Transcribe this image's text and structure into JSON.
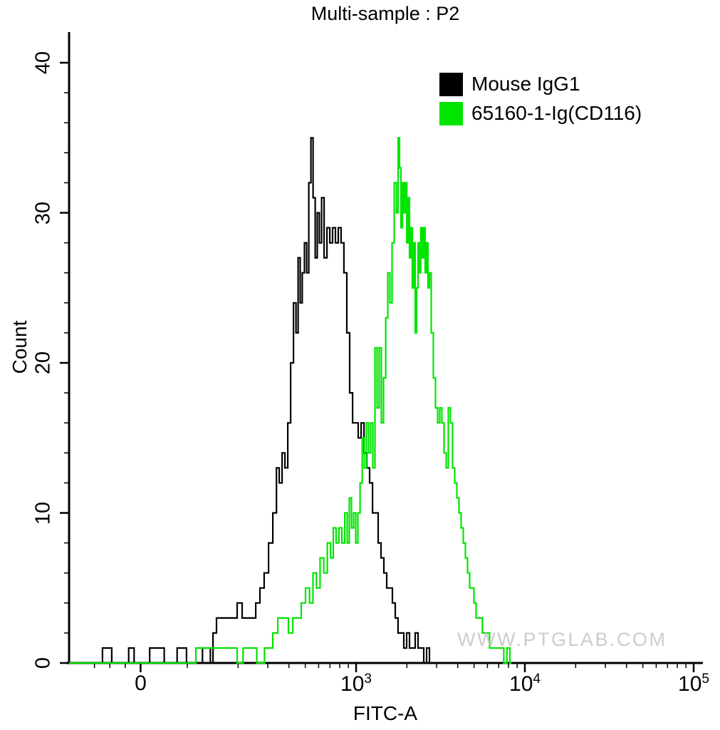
{
  "watermark": "WWW.PTGLAB.COM",
  "chart_data": {
    "type": "line",
    "subtype": "flow-cytometry-histogram",
    "title": "Multi-sample : P2",
    "xlabel": "FITC-A",
    "ylabel": "Count",
    "ylim": [
      0,
      40
    ],
    "xlim": [
      -465,
      100000
    ],
    "x_scale": "biexponential (linear below ~60, log10 decades above; labeled decades 10^3 to 10^5)",
    "grid": false,
    "legend_position": "top-right inside plot",
    "x_ticks": [
      {
        "text": "0",
        "v": 0
      },
      {
        "text": "10",
        "sup": "3",
        "v": 1000
      },
      {
        "text": "10",
        "sup": "4",
        "v": 10000
      },
      {
        "text": "10",
        "sup": "5",
        "v": 100000
      }
    ],
    "x_minor_ticks": [
      -300,
      -200,
      -100,
      100,
      200,
      300,
      400,
      500,
      600,
      700,
      800,
      900,
      2000,
      3000,
      4000,
      5000,
      6000,
      7000,
      8000,
      9000,
      20000,
      30000,
      40000,
      50000,
      60000,
      70000,
      80000,
      90000
    ],
    "y_ticks": [
      0,
      10,
      20,
      30,
      40
    ],
    "y_minor_step": 2,
    "series": [
      {
        "name": "Mouse IgG1",
        "color": "#000000",
        "peak": {
          "x": 548,
          "count": 35
        },
        "points": [
          [
            -465,
            0
          ],
          [
            -250,
            0
          ],
          [
            -245,
            1
          ],
          [
            -190,
            1
          ],
          [
            -185,
            0
          ],
          [
            -80,
            0
          ],
          [
            -75,
            1
          ],
          [
            -45,
            1
          ],
          [
            -40,
            0
          ],
          [
            58,
            0
          ],
          [
            60,
            1
          ],
          [
            72,
            1
          ],
          [
            74,
            0
          ],
          [
            86,
            0
          ],
          [
            88,
            1
          ],
          [
            98,
            1
          ],
          [
            100,
            0
          ],
          [
            122,
            0
          ],
          [
            124,
            1
          ],
          [
            136,
            1
          ],
          [
            138,
            0
          ],
          [
            141,
            0
          ],
          [
            143,
            2
          ],
          [
            155,
            3
          ],
          [
            192,
            3
          ],
          [
            203,
            4
          ],
          [
            220,
            3
          ],
          [
            247,
            3
          ],
          [
            262,
            4
          ],
          [
            277,
            5
          ],
          [
            294,
            6
          ],
          [
            312,
            8
          ],
          [
            331,
            10
          ],
          [
            344,
            13
          ],
          [
            357,
            12
          ],
          [
            372,
            14
          ],
          [
            386,
            13
          ],
          [
            402,
            16
          ],
          [
            417,
            20
          ],
          [
            434,
            24
          ],
          [
            447,
            22
          ],
          [
            460,
            27
          ],
          [
            473,
            24
          ],
          [
            487,
            26
          ],
          [
            502,
            28
          ],
          [
            517,
            26
          ],
          [
            532,
            32
          ],
          [
            548,
            35
          ],
          [
            564,
            31
          ],
          [
            581,
            27
          ],
          [
            597,
            30
          ],
          [
            615,
            28
          ],
          [
            634,
            31
          ],
          [
            659,
            27
          ],
          [
            685,
            29
          ],
          [
            712,
            28
          ],
          [
            740,
            29
          ],
          [
            769,
            28
          ],
          [
            800,
            29
          ],
          [
            831,
            28
          ],
          [
            864,
            26
          ],
          [
            899,
            22
          ],
          [
            934,
            18
          ],
          [
            972,
            16
          ],
          [
            1010,
            16
          ],
          [
            1050,
            15
          ],
          [
            1092,
            16
          ],
          [
            1135,
            14
          ],
          [
            1180,
            13
          ],
          [
            1227,
            12
          ],
          [
            1276,
            10
          ],
          [
            1326,
            10
          ],
          [
            1378,
            8
          ],
          [
            1433,
            7
          ],
          [
            1489,
            6
          ],
          [
            1549,
            5
          ],
          [
            1610,
            5
          ],
          [
            1674,
            4
          ],
          [
            1738,
            3
          ],
          [
            1807,
            2
          ],
          [
            1879,
            2
          ],
          [
            1955,
            1
          ],
          [
            2032,
            2
          ],
          [
            2113,
            1
          ],
          [
            2198,
            1
          ],
          [
            2281,
            2
          ],
          [
            2377,
            1
          ],
          [
            2466,
            1
          ],
          [
            2565,
            0
          ],
          [
            2667,
            1
          ],
          [
            2775,
            0
          ],
          [
            2800,
            0
          ]
        ]
      },
      {
        "name": "65160-1-Ig(CD116)",
        "color": "#00e400",
        "peak": {
          "x": 1791,
          "count": 35
        },
        "points": [
          [
            -465,
            0
          ],
          [
            110,
            0
          ],
          [
            115,
            1
          ],
          [
            195,
            1
          ],
          [
            200,
            0
          ],
          [
            212,
            0
          ],
          [
            216,
            1
          ],
          [
            256,
            1
          ],
          [
            260,
            0
          ],
          [
            285,
            0
          ],
          [
            288,
            1
          ],
          [
            312,
            1
          ],
          [
            331,
            2
          ],
          [
            357,
            3
          ],
          [
            386,
            3
          ],
          [
            409,
            2
          ],
          [
            434,
            3
          ],
          [
            460,
            3
          ],
          [
            487,
            4
          ],
          [
            517,
            5
          ],
          [
            542,
            4
          ],
          [
            569,
            6
          ],
          [
            597,
            5
          ],
          [
            627,
            7
          ],
          [
            659,
            6
          ],
          [
            692,
            8
          ],
          [
            719,
            7
          ],
          [
            747,
            9
          ],
          [
            776,
            8
          ],
          [
            807,
            9
          ],
          [
            840,
            8
          ],
          [
            873,
            10
          ],
          [
            899,
            8
          ],
          [
            925,
            11
          ],
          [
            953,
            9
          ],
          [
            981,
            10
          ],
          [
            1010,
            8
          ],
          [
            1040,
            10
          ],
          [
            1071,
            12
          ],
          [
            1102,
            15
          ],
          [
            1135,
            13
          ],
          [
            1168,
            16
          ],
          [
            1202,
            14
          ],
          [
            1238,
            16
          ],
          [
            1276,
            13
          ],
          [
            1313,
            21
          ],
          [
            1352,
            17
          ],
          [
            1391,
            21
          ],
          [
            1433,
            16
          ],
          [
            1476,
            19
          ],
          [
            1520,
            23
          ],
          [
            1563,
            26
          ],
          [
            1610,
            24
          ],
          [
            1657,
            28
          ],
          [
            1706,
            32
          ],
          [
            1758,
            30
          ],
          [
            1791,
            35
          ],
          [
            1828,
            33
          ],
          [
            1862,
            29
          ],
          [
            1901,
            32
          ],
          [
            1937,
            30
          ],
          [
            1977,
            32
          ],
          [
            2014,
            28
          ],
          [
            2052,
            31
          ],
          [
            2094,
            27
          ],
          [
            2133,
            29
          ],
          [
            2175,
            25
          ],
          [
            2218,
            28
          ],
          [
            2259,
            22
          ],
          [
            2307,
            25
          ],
          [
            2350,
            28
          ],
          [
            2390,
            26
          ],
          [
            2443,
            29
          ],
          [
            2495,
            27
          ],
          [
            2541,
            29
          ],
          [
            2590,
            26
          ],
          [
            2642,
            28
          ],
          [
            2692,
            25
          ],
          [
            2748,
            26
          ],
          [
            2825,
            22
          ],
          [
            2911,
            19
          ],
          [
            2999,
            17
          ],
          [
            3083,
            16
          ],
          [
            3177,
            17
          ],
          [
            3273,
            16
          ],
          [
            3365,
            14
          ],
          [
            3467,
            13
          ],
          [
            3573,
            17
          ],
          [
            3673,
            16
          ],
          [
            3784,
            13
          ],
          [
            3899,
            12
          ],
          [
            4009,
            11
          ],
          [
            4130,
            10
          ],
          [
            4256,
            9
          ],
          [
            4375,
            8
          ],
          [
            4508,
            7
          ],
          [
            4645,
            6
          ],
          [
            4775,
            5
          ],
          [
            4920,
            5
          ],
          [
            5070,
            4
          ],
          [
            5212,
            3
          ],
          [
            5470,
            3
          ],
          [
            5741,
            2
          ],
          [
            6039,
            2
          ],
          [
            6310,
            1
          ],
          [
            6653,
            1
          ],
          [
            6950,
            1
          ],
          [
            7328,
            1
          ],
          [
            7668,
            0
          ],
          [
            7998,
            1
          ],
          [
            8318,
            0
          ]
        ]
      }
    ]
  }
}
